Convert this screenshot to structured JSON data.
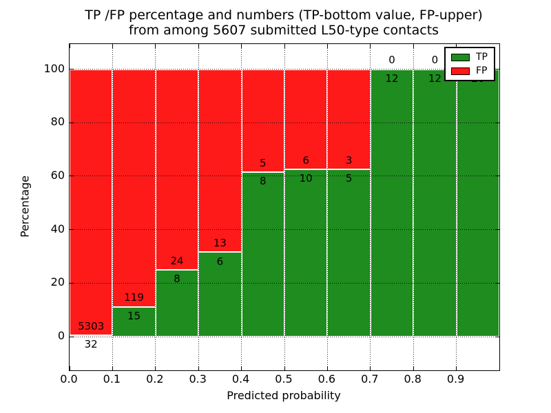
{
  "figure": {
    "title_line1": "TP /FP percentage and numbers (TP-bottom value, FP-upper)",
    "title_line2": "from among 5607 submitted L50-type contacts",
    "xlabel": "Predicted probability",
    "ylabel": "Percentage"
  },
  "legend": {
    "position": "upper right",
    "items": [
      {
        "label": "TP",
        "color": "#1e8c1e"
      },
      {
        "label": "FP",
        "color": "#ff1a1a"
      }
    ]
  },
  "chart_data": {
    "type": "bar",
    "stacked": true,
    "normalized_to_percent": true,
    "title": "TP /FP percentage and numbers (TP-bottom value, FP-upper)\nfrom among 5607 submitted L50-type contacts",
    "xlabel": "Predicted probability",
    "ylabel": "Percentage",
    "total_contacts": 5607,
    "bin_edges": [
      0.0,
      0.1,
      0.2,
      0.3,
      0.4,
      0.5,
      0.6,
      0.7,
      0.8,
      0.9,
      1.0
    ],
    "categories": [
      "0.0-0.1",
      "0.1-0.2",
      "0.2-0.3",
      "0.3-0.4",
      "0.4-0.5",
      "0.5-0.6",
      "0.6-0.7",
      "0.7-0.8",
      "0.8-0.9",
      "0.9-1.0"
    ],
    "series": [
      {
        "name": "TP",
        "color": "#1e8c1e",
        "counts": [
          32,
          15,
          8,
          6,
          8,
          10,
          5,
          12,
          12,
          26
        ]
      },
      {
        "name": "FP",
        "color": "#ff1a1a",
        "counts": [
          5303,
          119,
          24,
          13,
          5,
          6,
          3,
          0,
          0,
          0
        ]
      }
    ],
    "tp_percent": [
      0.6,
      11.2,
      25.0,
      31.6,
      61.5,
      62.5,
      62.5,
      100.0,
      100.0,
      100.0
    ],
    "annotation_rule": "FP count above segment boundary, TP count below segment boundary",
    "xticklabels": [
      "0.0",
      "0.1",
      "0.2",
      "0.3",
      "0.4",
      "0.5",
      "0.6",
      "0.7",
      "0.8",
      "0.9"
    ],
    "yticks": [
      0,
      20,
      40,
      60,
      80,
      100
    ],
    "xlim": [
      0.0,
      1.0
    ],
    "ylim": [
      -12.6,
      109.4
    ],
    "grid": true,
    "grid_style": "dotted",
    "bar_edge_color": "#ffffff",
    "legend_position": "upper right"
  }
}
